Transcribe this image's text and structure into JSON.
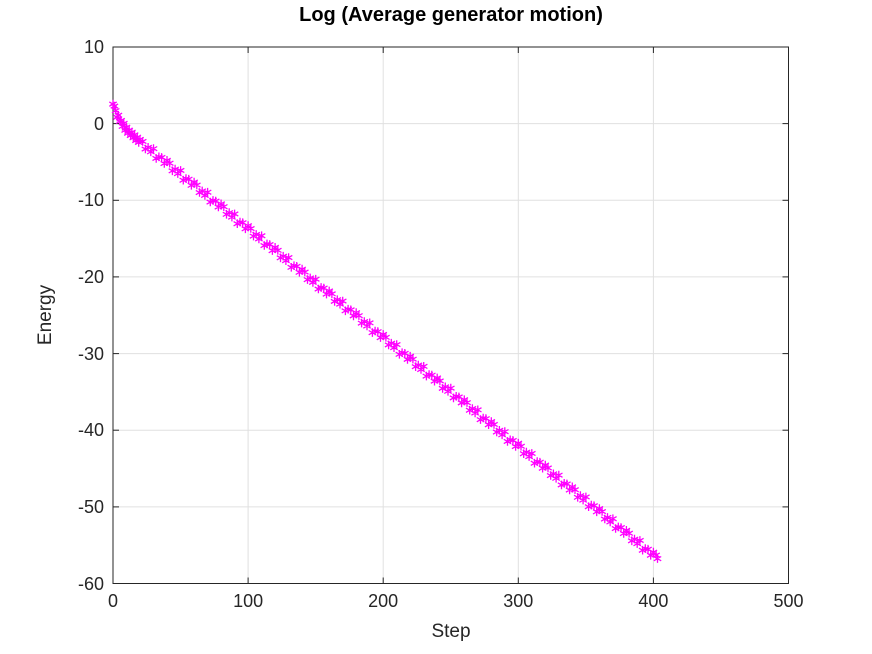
{
  "chart_data": {
    "type": "scatter",
    "title": "Log (Average generator motion)",
    "xlabel": "Step",
    "ylabel": "Energy",
    "xlim": [
      0,
      500
    ],
    "ylim": [
      -60,
      10
    ],
    "xticks": [
      0,
      100,
      200,
      300,
      400,
      500
    ],
    "yticks": [
      10,
      0,
      -10,
      -20,
      -30,
      -40,
      -50,
      -60
    ],
    "grid": true,
    "legend": false,
    "marker": "asterisk",
    "colors": {
      "series": "#FF00FF",
      "grid": "#E0E0E0",
      "axis": "#262626",
      "tick_label": "#262626",
      "title": "#000000"
    },
    "series": [
      {
        "x": [
          0,
          1,
          2,
          3,
          4,
          5,
          6,
          7,
          8,
          9,
          10,
          11,
          12,
          13,
          14,
          15,
          16,
          17,
          18,
          19,
          20,
          22,
          24,
          26,
          28,
          30,
          32,
          34,
          36,
          38,
          40,
          42,
          44,
          46,
          48,
          50,
          52,
          54,
          56,
          58,
          60,
          62,
          64,
          66,
          68,
          70,
          72,
          74,
          76,
          78,
          80,
          82,
          84,
          86,
          88,
          90,
          92,
          94,
          96,
          98,
          100,
          102,
          104,
          106,
          108,
          110,
          112,
          114,
          116,
          118,
          120,
          122,
          124,
          126,
          128,
          130,
          132,
          134,
          136,
          138,
          140,
          142,
          144,
          146,
          148,
          150,
          152,
          154,
          156,
          158,
          160,
          162,
          164,
          166,
          168,
          170,
          172,
          174,
          176,
          178,
          180,
          182,
          184,
          186,
          188,
          190,
          192,
          194,
          196,
          198,
          200,
          202,
          204,
          206,
          208,
          210,
          212,
          214,
          216,
          218,
          220,
          222,
          224,
          226,
          228,
          230,
          232,
          234,
          236,
          238,
          240,
          242,
          244,
          246,
          248,
          250,
          252,
          254,
          256,
          258,
          260,
          262,
          264,
          266,
          268,
          270,
          272,
          274,
          276,
          278,
          280,
          282,
          284,
          286,
          288,
          290,
          292,
          294,
          296,
          298,
          300,
          302,
          304,
          306,
          308,
          310,
          312,
          314,
          316,
          318,
          320,
          322,
          324,
          326,
          328,
          330,
          332,
          334,
          336,
          338,
          340,
          342,
          344,
          346,
          348,
          350,
          352,
          354,
          356,
          358,
          360,
          362,
          364,
          366,
          368,
          370,
          372,
          374,
          376,
          378,
          380,
          382,
          384,
          386,
          388,
          390,
          392,
          394,
          396,
          398,
          400,
          402,
          403
        ],
        "y": [
          2.55,
          2.3,
          1.7,
          0.85,
          1.1,
          0.3,
          0.42,
          -0.35,
          0.05,
          -0.85,
          -0.45,
          -1.25,
          -0.85,
          -1.55,
          -1.1,
          -1.85,
          -1.45,
          -2.2,
          -1.75,
          -2.45,
          -2.05,
          -2.32,
          -3.31,
          -3.09,
          -3.68,
          -3.26,
          -4.54,
          -4.33,
          -4.41,
          -5.2,
          -4.78,
          -5.16,
          -6.15,
          -5.93,
          -6.52,
          -6.1,
          -7.38,
          -7.17,
          -7.25,
          -8.04,
          -7.62,
          -8.0,
          -8.99,
          -8.77,
          -9.36,
          -8.94,
          -10.22,
          -10.01,
          -10.09,
          -10.88,
          -10.46,
          -10.84,
          -11.83,
          -11.61,
          -12.2,
          -11.78,
          -13.06,
          -12.85,
          -12.93,
          -13.72,
          -13.3,
          -13.68,
          -14.67,
          -14.45,
          -15.04,
          -14.62,
          -15.9,
          -15.69,
          -15.77,
          -16.56,
          -16.14,
          -16.52,
          -17.51,
          -17.29,
          -17.88,
          -17.46,
          -18.74,
          -18.53,
          -18.61,
          -19.4,
          -18.98,
          -19.36,
          -20.35,
          -20.13,
          -20.72,
          -20.3,
          -21.58,
          -21.37,
          -21.45,
          -22.24,
          -21.82,
          -22.2,
          -23.19,
          -22.97,
          -23.56,
          -23.14,
          -24.42,
          -24.21,
          -24.29,
          -25.08,
          -24.66,
          -25.04,
          -26.03,
          -25.81,
          -26.4,
          -25.98,
          -27.26,
          -27.05,
          -27.13,
          -27.92,
          -27.5,
          -27.88,
          -28.87,
          -28.65,
          -29.24,
          -28.82,
          -30.1,
          -29.89,
          -29.97,
          -30.76,
          -30.34,
          -30.72,
          -31.71,
          -31.49,
          -32.08,
          -31.66,
          -32.94,
          -32.73,
          -32.81,
          -33.6,
          -33.18,
          -33.56,
          -34.55,
          -34.33,
          -34.92,
          -34.5,
          -35.78,
          -35.57,
          -35.65,
          -36.44,
          -36.02,
          -36.4,
          -37.39,
          -37.17,
          -37.76,
          -37.34,
          -38.62,
          -38.41,
          -38.49,
          -39.28,
          -38.86,
          -39.24,
          -40.23,
          -40.01,
          -40.6,
          -40.18,
          -41.46,
          -41.25,
          -41.33,
          -42.12,
          -41.7,
          -42.08,
          -43.07,
          -42.85,
          -43.44,
          -43.02,
          -44.3,
          -44.09,
          -44.17,
          -44.96,
          -44.54,
          -44.92,
          -45.91,
          -45.69,
          -46.28,
          -45.86,
          -47.14,
          -46.93,
          -47.01,
          -47.8,
          -47.38,
          -47.76,
          -48.75,
          -48.53,
          -49.12,
          -48.7,
          -49.98,
          -49.77,
          -49.85,
          -50.64,
          -50.22,
          -50.6,
          -51.59,
          -51.37,
          -51.96,
          -51.54,
          -52.82,
          -52.61,
          -52.69,
          -53.48,
          -53.06,
          -53.44,
          -54.43,
          -54.21,
          -54.8,
          -54.38,
          -55.66,
          -55.45,
          -55.53,
          -56.32,
          -55.9,
          -56.28,
          -56.75
        ]
      }
    ]
  }
}
